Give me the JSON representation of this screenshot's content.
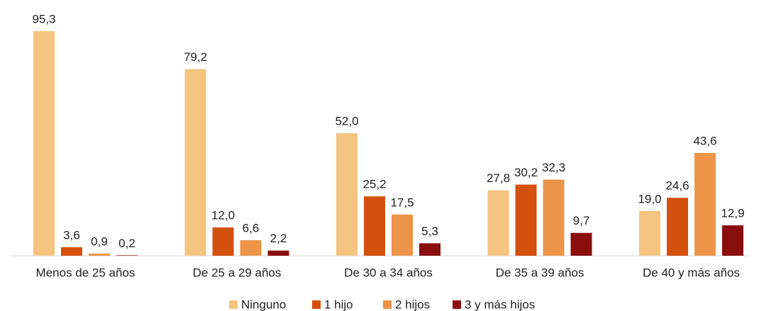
{
  "chart_data": {
    "type": "bar",
    "categories": [
      "Menos de 25 años",
      "De 25 a 29 años",
      "De 30 a 34 años",
      "De 35 a 39 años",
      "De 40 y más años"
    ],
    "series": [
      {
        "name": "Ninguno",
        "color": "#f5c480",
        "values": [
          95.3,
          79.2,
          52.0,
          27.8,
          19.0
        ],
        "value_labels": [
          "95,3",
          "79,2",
          "52,0",
          "27,8",
          "19,0"
        ]
      },
      {
        "name": "1 hijo",
        "color": "#d4500f",
        "values": [
          3.6,
          12.0,
          25.2,
          30.2,
          24.6
        ],
        "value_labels": [
          "3,6",
          "12,0",
          "25,2",
          "30,2",
          "24,6"
        ]
      },
      {
        "name": "2 hijos",
        "color": "#ec9548",
        "values": [
          0.9,
          6.6,
          17.5,
          32.3,
          43.6
        ],
        "value_labels": [
          "0,9",
          "6,6",
          "17,5",
          "32,3",
          "43,6"
        ]
      },
      {
        "name": "3 y más hijos",
        "color": "#8b0e0e",
        "values": [
          0.2,
          2.2,
          5.3,
          9.7,
          12.9
        ],
        "value_labels": [
          "0,2",
          "2,2",
          "5,3",
          "9,7",
          "12,9"
        ]
      }
    ],
    "legend": "bottom"
  }
}
